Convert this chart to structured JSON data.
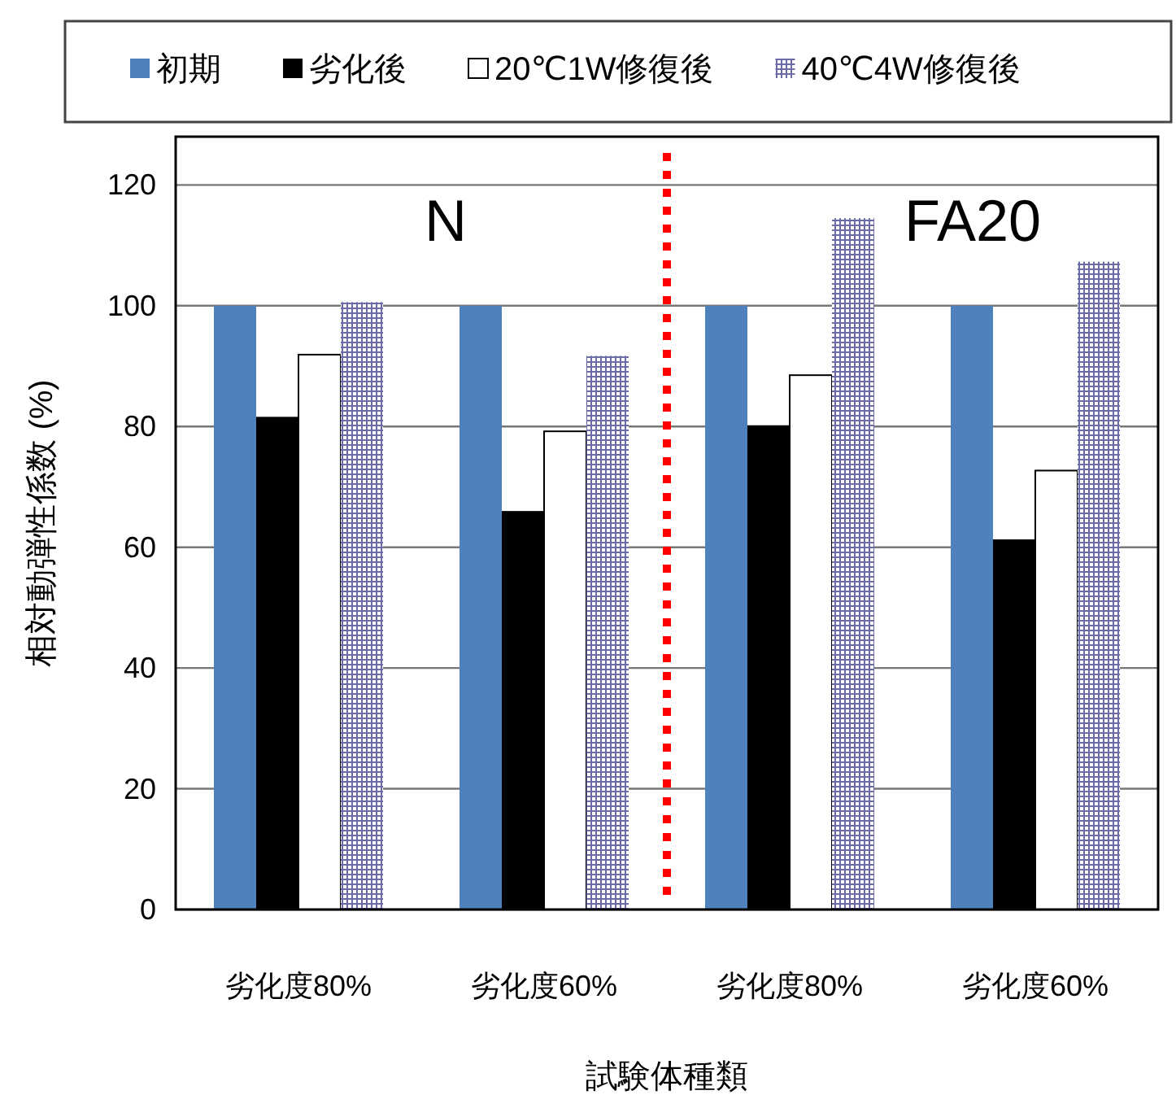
{
  "chart_data": {
    "type": "bar",
    "ylabel": "相対動弾性係数 (%)",
    "xlabel": "試験体種類",
    "categories": [
      "劣化度80%",
      "劣化度60%",
      "劣化度80%",
      "劣化度60%"
    ],
    "series": [
      {
        "name": "初期",
        "color": "#4f81bd",
        "values": [
          100,
          100,
          100,
          100
        ]
      },
      {
        "name": "劣化後",
        "color": "#000000",
        "values": [
          81.6,
          66.0,
          80.2,
          61.3
        ]
      },
      {
        "name": "20℃1W修復後",
        "color": "#ffffff",
        "values": [
          91.9,
          79.2,
          88.5,
          72.7
        ]
      },
      {
        "name": "40℃4W修復後",
        "color": "#6b6ba8",
        "values": [
          100.6,
          91.7,
          114.5,
          107.3
        ]
      }
    ],
    "ylim": [
      0,
      128
    ],
    "yticks": [
      0,
      20,
      40,
      60,
      80,
      100,
      120
    ],
    "grid": "y",
    "legend": "top",
    "annotations": [
      "N",
      "FA20"
    ]
  }
}
